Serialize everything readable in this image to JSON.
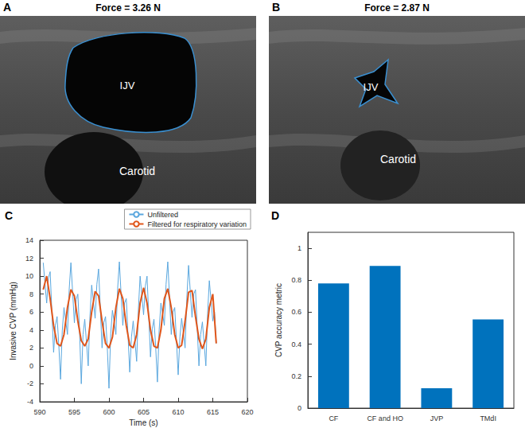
{
  "panels": [
    {
      "panel": "A",
      "type": "image",
      "title": "Force = 3.26 N",
      "labels": [
        "IJV",
        "Carotid"
      ]
    },
    {
      "panel": "B",
      "type": "image",
      "title": "Force = 2.87 N",
      "labels": [
        "IJV",
        "Carotid"
      ]
    }
  ],
  "chart_data": [
    {
      "panel": "C",
      "type": "line",
      "xlabel": "Time (s)",
      "ylabel": "Invasive CVP (mmHg)",
      "xlim": [
        590,
        620
      ],
      "xticks": [
        590,
        595,
        600,
        605,
        610,
        615,
        620
      ],
      "ylim": [
        -4,
        14
      ],
      "yticks": [
        -4,
        -2,
        0,
        2,
        4,
        6,
        8,
        10,
        12,
        14
      ],
      "grid": false,
      "legend": "top-right",
      "series": [
        {
          "name": "Unfiltered",
          "color": "#5aa7de",
          "x": [
            590.5,
            590.75,
            591,
            591.25,
            591.5,
            591.75,
            592,
            592.25,
            592.5,
            592.75,
            593,
            593.25,
            593.5,
            593.75,
            594,
            594.25,
            594.5,
            594.75,
            595,
            595.25,
            595.5,
            595.75,
            596,
            596.25,
            596.5,
            596.75,
            597,
            597.25,
            597.5,
            597.75,
            598,
            598.25,
            598.5,
            598.75,
            599,
            599.25,
            599.5,
            599.75,
            600,
            600.25,
            600.5,
            600.75,
            601,
            601.25,
            601.5,
            601.75,
            602,
            602.25,
            602.5,
            602.75,
            603,
            603.25,
            603.5,
            603.75,
            604,
            604.25,
            604.5,
            604.75,
            605,
            605.25,
            605.5,
            605.75,
            606,
            606.25,
            606.5,
            606.75,
            607,
            607.25,
            607.5,
            607.75,
            608,
            608.25,
            608.5,
            608.75,
            609,
            609.25,
            609.5,
            609.75,
            610,
            610.25,
            610.5,
            610.75,
            611,
            611.25,
            611.5,
            611.75,
            612,
            612.25,
            612.5,
            612.75,
            613,
            613.25,
            613.5,
            613.75,
            614,
            614.25,
            614.5,
            614.75,
            615,
            615.25,
            615.5
          ],
          "values": [
            11.5,
            9.2,
            7.0,
            9.8,
            10.5,
            6.0,
            1.5,
            4.5,
            5.5,
            2.3,
            -1.5,
            3.9,
            6.5,
            5.0,
            3.5,
            8.5,
            11.5,
            8.2,
            4.8,
            7.4,
            8.0,
            3.9,
            -2.0,
            3.5,
            5.2,
            2.6,
            0.0,
            5.5,
            9.0,
            7.2,
            5.3,
            9.1,
            10.8,
            6.4,
            2.0,
            4.8,
            5.5,
            2.2,
            -2.5,
            3.6,
            6.2,
            4.9,
            3.5,
            8.6,
            11.6,
            8.0,
            4.5,
            7.0,
            7.5,
            3.4,
            -0.7,
            3.2,
            5.0,
            2.8,
            0.5,
            6.3,
            10.0,
            7.9,
            5.7,
            8.9,
            10.0,
            5.5,
            1.0,
            4.1,
            5.2,
            2.1,
            -1.8,
            4.0,
            7.0,
            5.8,
            4.5,
            9.1,
            11.6,
            7.6,
            3.5,
            6.0,
            6.5,
            2.8,
            -1.0,
            3.2,
            5.3,
            3.7,
            2.0,
            7.6,
            11.2,
            8.3,
            5.4,
            8.0,
            8.5,
            4.3,
            0.0,
            3.5,
            4.9,
            2.5,
            0.0,
            5.8,
            9.5,
            7.3,
            5.0,
            6.0,
            2.5
          ]
        },
        {
          "name": "Filtered for respiratory variation",
          "color": "#e0561b",
          "x": [
            590.5,
            591,
            591.5,
            592,
            592.5,
            593,
            593.5,
            594,
            594.5,
            595,
            595.5,
            596,
            596.5,
            597,
            597.5,
            598,
            598.5,
            599,
            599.5,
            600,
            600.5,
            601,
            601.5,
            602,
            602.5,
            603,
            603.5,
            604,
            604.5,
            605,
            605.5,
            606,
            606.5,
            607,
            607.5,
            608,
            608.5,
            609,
            609.5,
            610,
            610.5,
            611,
            611.5,
            612,
            612.5,
            613,
            613.5,
            614,
            614.5,
            615,
            615.5
          ],
          "values": [
            8.5,
            10.0,
            7.5,
            4.5,
            2.5,
            2.2,
            3.5,
            6.5,
            8.5,
            7.8,
            5.0,
            2.8,
            2.2,
            3.0,
            6.0,
            8.3,
            7.8,
            5.0,
            2.5,
            2.0,
            3.2,
            6.5,
            8.6,
            7.5,
            4.5,
            2.3,
            2.0,
            3.5,
            7.0,
            8.7,
            7.0,
            4.0,
            2.2,
            2.0,
            4.0,
            7.5,
            8.6,
            6.5,
            3.5,
            2.0,
            2.3,
            5.0,
            8.2,
            8.4,
            5.5,
            3.0,
            1.9,
            3.0,
            6.5,
            8.0,
            2.5
          ]
        }
      ]
    },
    {
      "panel": "D",
      "type": "bar",
      "ylabel": "CVP accuracy metric",
      "categories": [
        "CF",
        "CF and HO",
        "JVP",
        "TMdI"
      ],
      "values": [
        0.78,
        0.89,
        0.125,
        0.555
      ],
      "color": "#0072bd",
      "ylim": [
        0,
        1.1
      ],
      "yticks": [
        0,
        0.2,
        0.4,
        0.6,
        0.8,
        1
      ],
      "grid": false
    }
  ]
}
